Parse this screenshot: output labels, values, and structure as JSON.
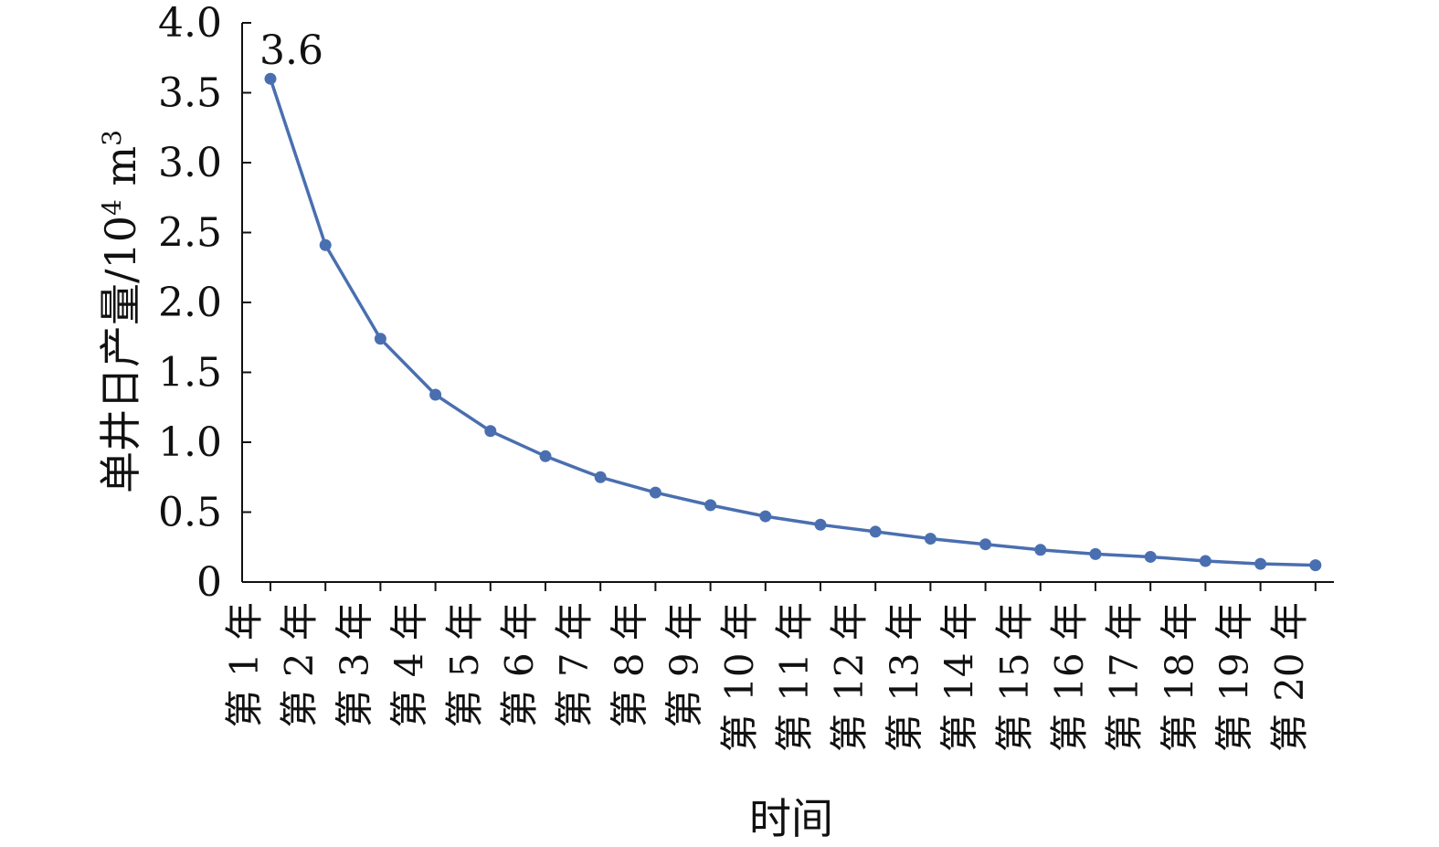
{
  "chart_data": {
    "type": "line",
    "categories": [
      "第 1 年",
      "第 2 年",
      "第 3 年",
      "第 4 年",
      "第 5 年",
      "第 6 年",
      "第 7 年",
      "第 8 年",
      "第 9 年",
      "第 10 年",
      "第 11 年",
      "第 12 年",
      "第 13 年",
      "第 14 年",
      "第 15 年",
      "第 16 年",
      "第 17 年",
      "第 18 年",
      "第 19 年",
      "第 20 年"
    ],
    "series": [
      {
        "values": [
          3.6,
          2.41,
          1.74,
          1.34,
          1.08,
          0.9,
          0.75,
          0.64,
          0.55,
          0.47,
          0.41,
          0.36,
          0.31,
          0.27,
          0.23,
          0.2,
          0.18,
          0.15,
          0.13,
          0.12
        ],
        "color": "#4a6fb0"
      }
    ],
    "ylim": [
      0,
      4.0
    ],
    "yticks": [
      "0",
      "0.5",
      "1.0",
      "1.5",
      "2.0",
      "2.5",
      "3.0",
      "3.5",
      "4.0"
    ],
    "ylabel": "单井日产量/10",
    "ylabel_sup": "4",
    "ylabel_unit": " m",
    "ylabel_unit_sup": "3",
    "xlabel": "时间",
    "annotation": {
      "text": "3.6",
      "point_index": 0
    },
    "grid": false,
    "legend": "none"
  }
}
